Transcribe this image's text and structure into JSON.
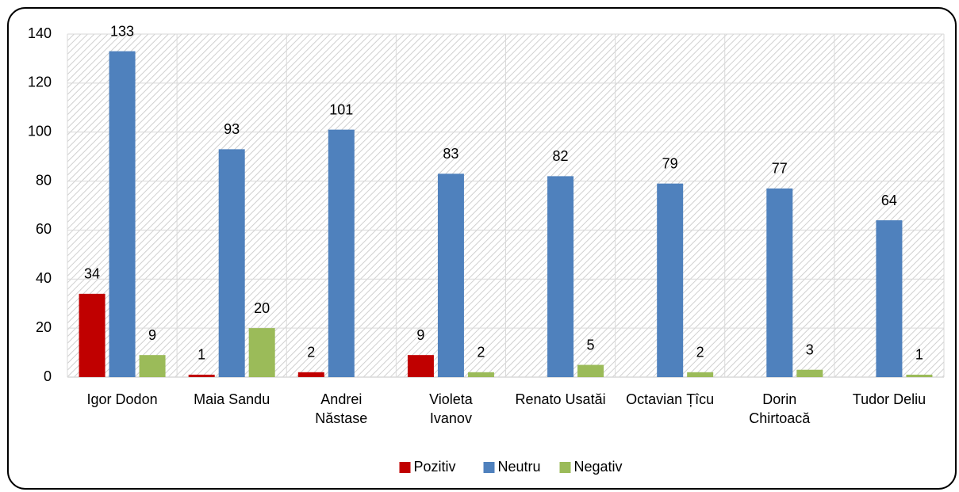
{
  "chart_data": {
    "type": "bar",
    "categories": [
      "Igor Dodon",
      "Maia Sandu",
      "Andrei\nNăstase",
      "Violeta\nIvanov",
      "Renato Usatăi",
      "Octavian Țîcu",
      "Dorin\nChirtoacă",
      "Tudor Deliu"
    ],
    "series": [
      {
        "name": "Pozitiv",
        "color": "#c00000",
        "values": [
          34,
          1,
          2,
          9,
          null,
          null,
          null,
          null
        ]
      },
      {
        "name": "Neutru",
        "color": "#4f81bd",
        "values": [
          133,
          93,
          101,
          83,
          82,
          79,
          77,
          64
        ]
      },
      {
        "name": "Negativ",
        "color": "#9bbb59",
        "values": [
          9,
          20,
          null,
          2,
          5,
          2,
          3,
          1
        ]
      }
    ],
    "ylim": [
      0,
      140
    ],
    "yticks": [
      0,
      20,
      40,
      60,
      80,
      100,
      120,
      140
    ],
    "grid": true,
    "legend": "bottom"
  }
}
